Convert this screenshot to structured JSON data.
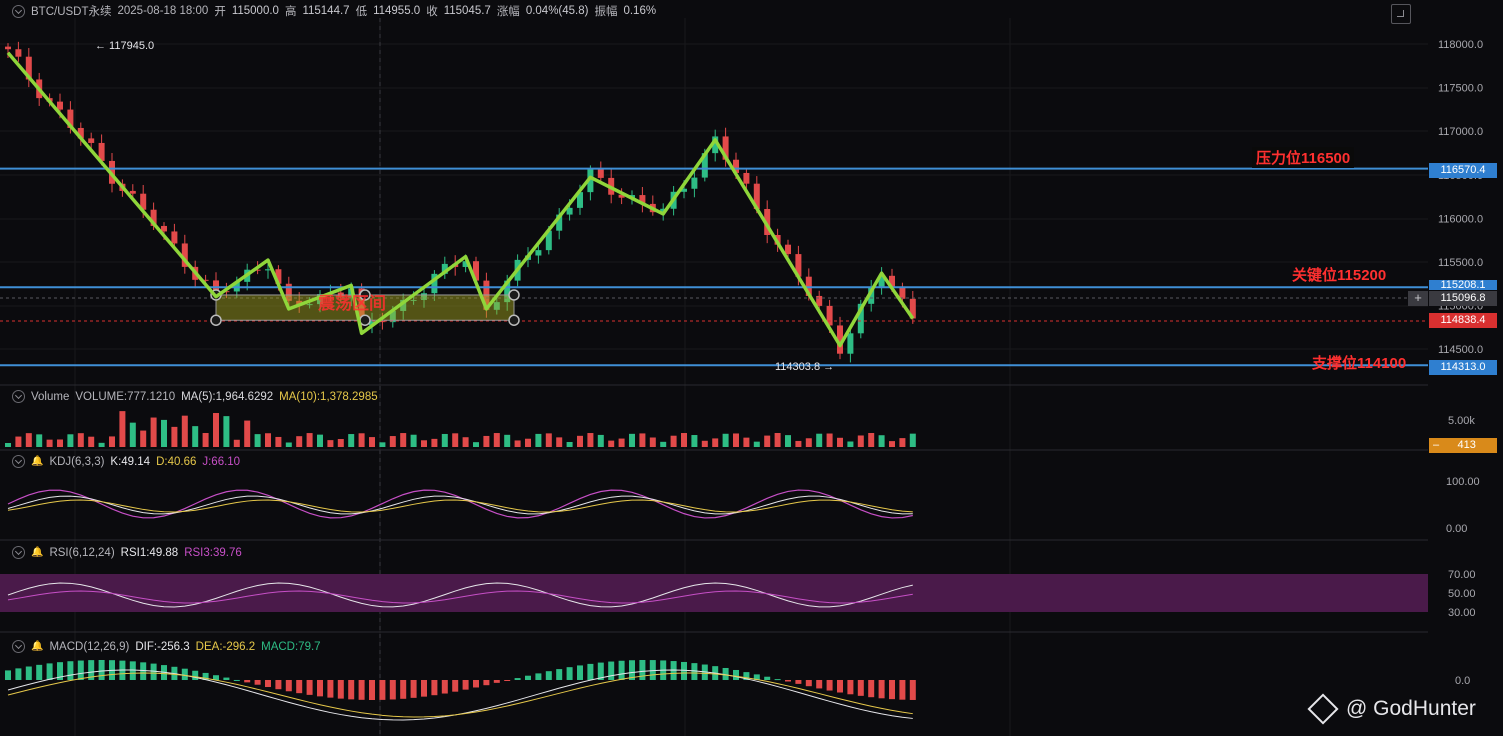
{
  "header": {
    "symbol": "BTC/USDT永续",
    "datetime": "2025-08-18 18:00",
    "open_label": "开",
    "open": "115000.0",
    "high_label": "高",
    "high": "115144.7",
    "low_label": "低",
    "low": "114955.0",
    "close_label": "收",
    "close": "115045.7",
    "change_label": "涨幅",
    "change": "0.04%(45.8)",
    "amp_label": "振幅",
    "amp": "0.16%"
  },
  "price_axis": {
    "ticks": [
      "118000.0",
      "117500.0",
      "117000.0",
      "116500.0",
      "116000.0",
      "115500.0",
      "115000.0",
      "114500.0"
    ]
  },
  "levels": {
    "resistance": {
      "label": "压力位116500",
      "tag": "116570.4",
      "value": 116570.4
    },
    "key": {
      "label": "关键位115200",
      "tag": "115208.1",
      "value": 115208.1
    },
    "support": {
      "label": "支撑位114100",
      "tag": "114313.0",
      "value": 114313.0
    },
    "current_tag": "115096.8",
    "red_tag": "114838.4"
  },
  "annotations": {
    "high_marker": "← 117945.0",
    "low_marker": "114303.8 →",
    "box_label": "震荡区间"
  },
  "volume": {
    "title": "Volume",
    "vol": "VOLUME:777.1210",
    "ma5": "MA(5):1,964.6292",
    "ma10": "MA(10):1,378.2985",
    "tick": "5.00k",
    "tag": "413"
  },
  "kdj": {
    "title": "KDJ(6,3,3)",
    "k": "K:49.14",
    "d": "D:40.66",
    "j": "J:66.10",
    "ticks": [
      "100.00",
      "0.00"
    ]
  },
  "rsi": {
    "title": "RSI(6,12,24)",
    "rsi1": "RSI1:49.88",
    "rsi3": "RSI3:39.76",
    "ticks": [
      "70.00",
      "50.00",
      "30.00"
    ]
  },
  "macd": {
    "title": "MACD(12,26,9)",
    "dif": "DIF:-256.3",
    "dea": "DEA:-296.2",
    "macd": "MACD:79.7",
    "tick": "0.0"
  },
  "watermark": "@ GodHunter",
  "colors": {
    "up": "#2ebd85",
    "down": "#e24a4a",
    "level": "#3f8fd6",
    "wave": "#8fd63a",
    "label": "#ff3030",
    "ma10": "#e6c84a",
    "rsi_band": "#4a1a4a"
  },
  "chart_data": {
    "type": "candlestick",
    "title": "BTC/USDT永续",
    "ylim": [
      114250,
      118200
    ],
    "wave_path": [
      {
        "x": 0,
        "y": 117900
      },
      {
        "x": 20,
        "y": 115100
      },
      {
        "x": 25,
        "y": 115520
      },
      {
        "x": 27,
        "y": 114960
      },
      {
        "x": 33,
        "y": 115230
      },
      {
        "x": 34,
        "y": 114680
      },
      {
        "x": 44,
        "y": 115560
      },
      {
        "x": 46,
        "y": 114960
      },
      {
        "x": 56,
        "y": 116470
      },
      {
        "x": 63,
        "y": 116050
      },
      {
        "x": 68,
        "y": 116900
      },
      {
        "x": 80,
        "y": 114540
      },
      {
        "x": 84,
        "y": 115370
      },
      {
        "x": 87,
        "y": 114850
      }
    ],
    "range_box": {
      "top": 115120,
      "bottom": 114830
    }
  }
}
